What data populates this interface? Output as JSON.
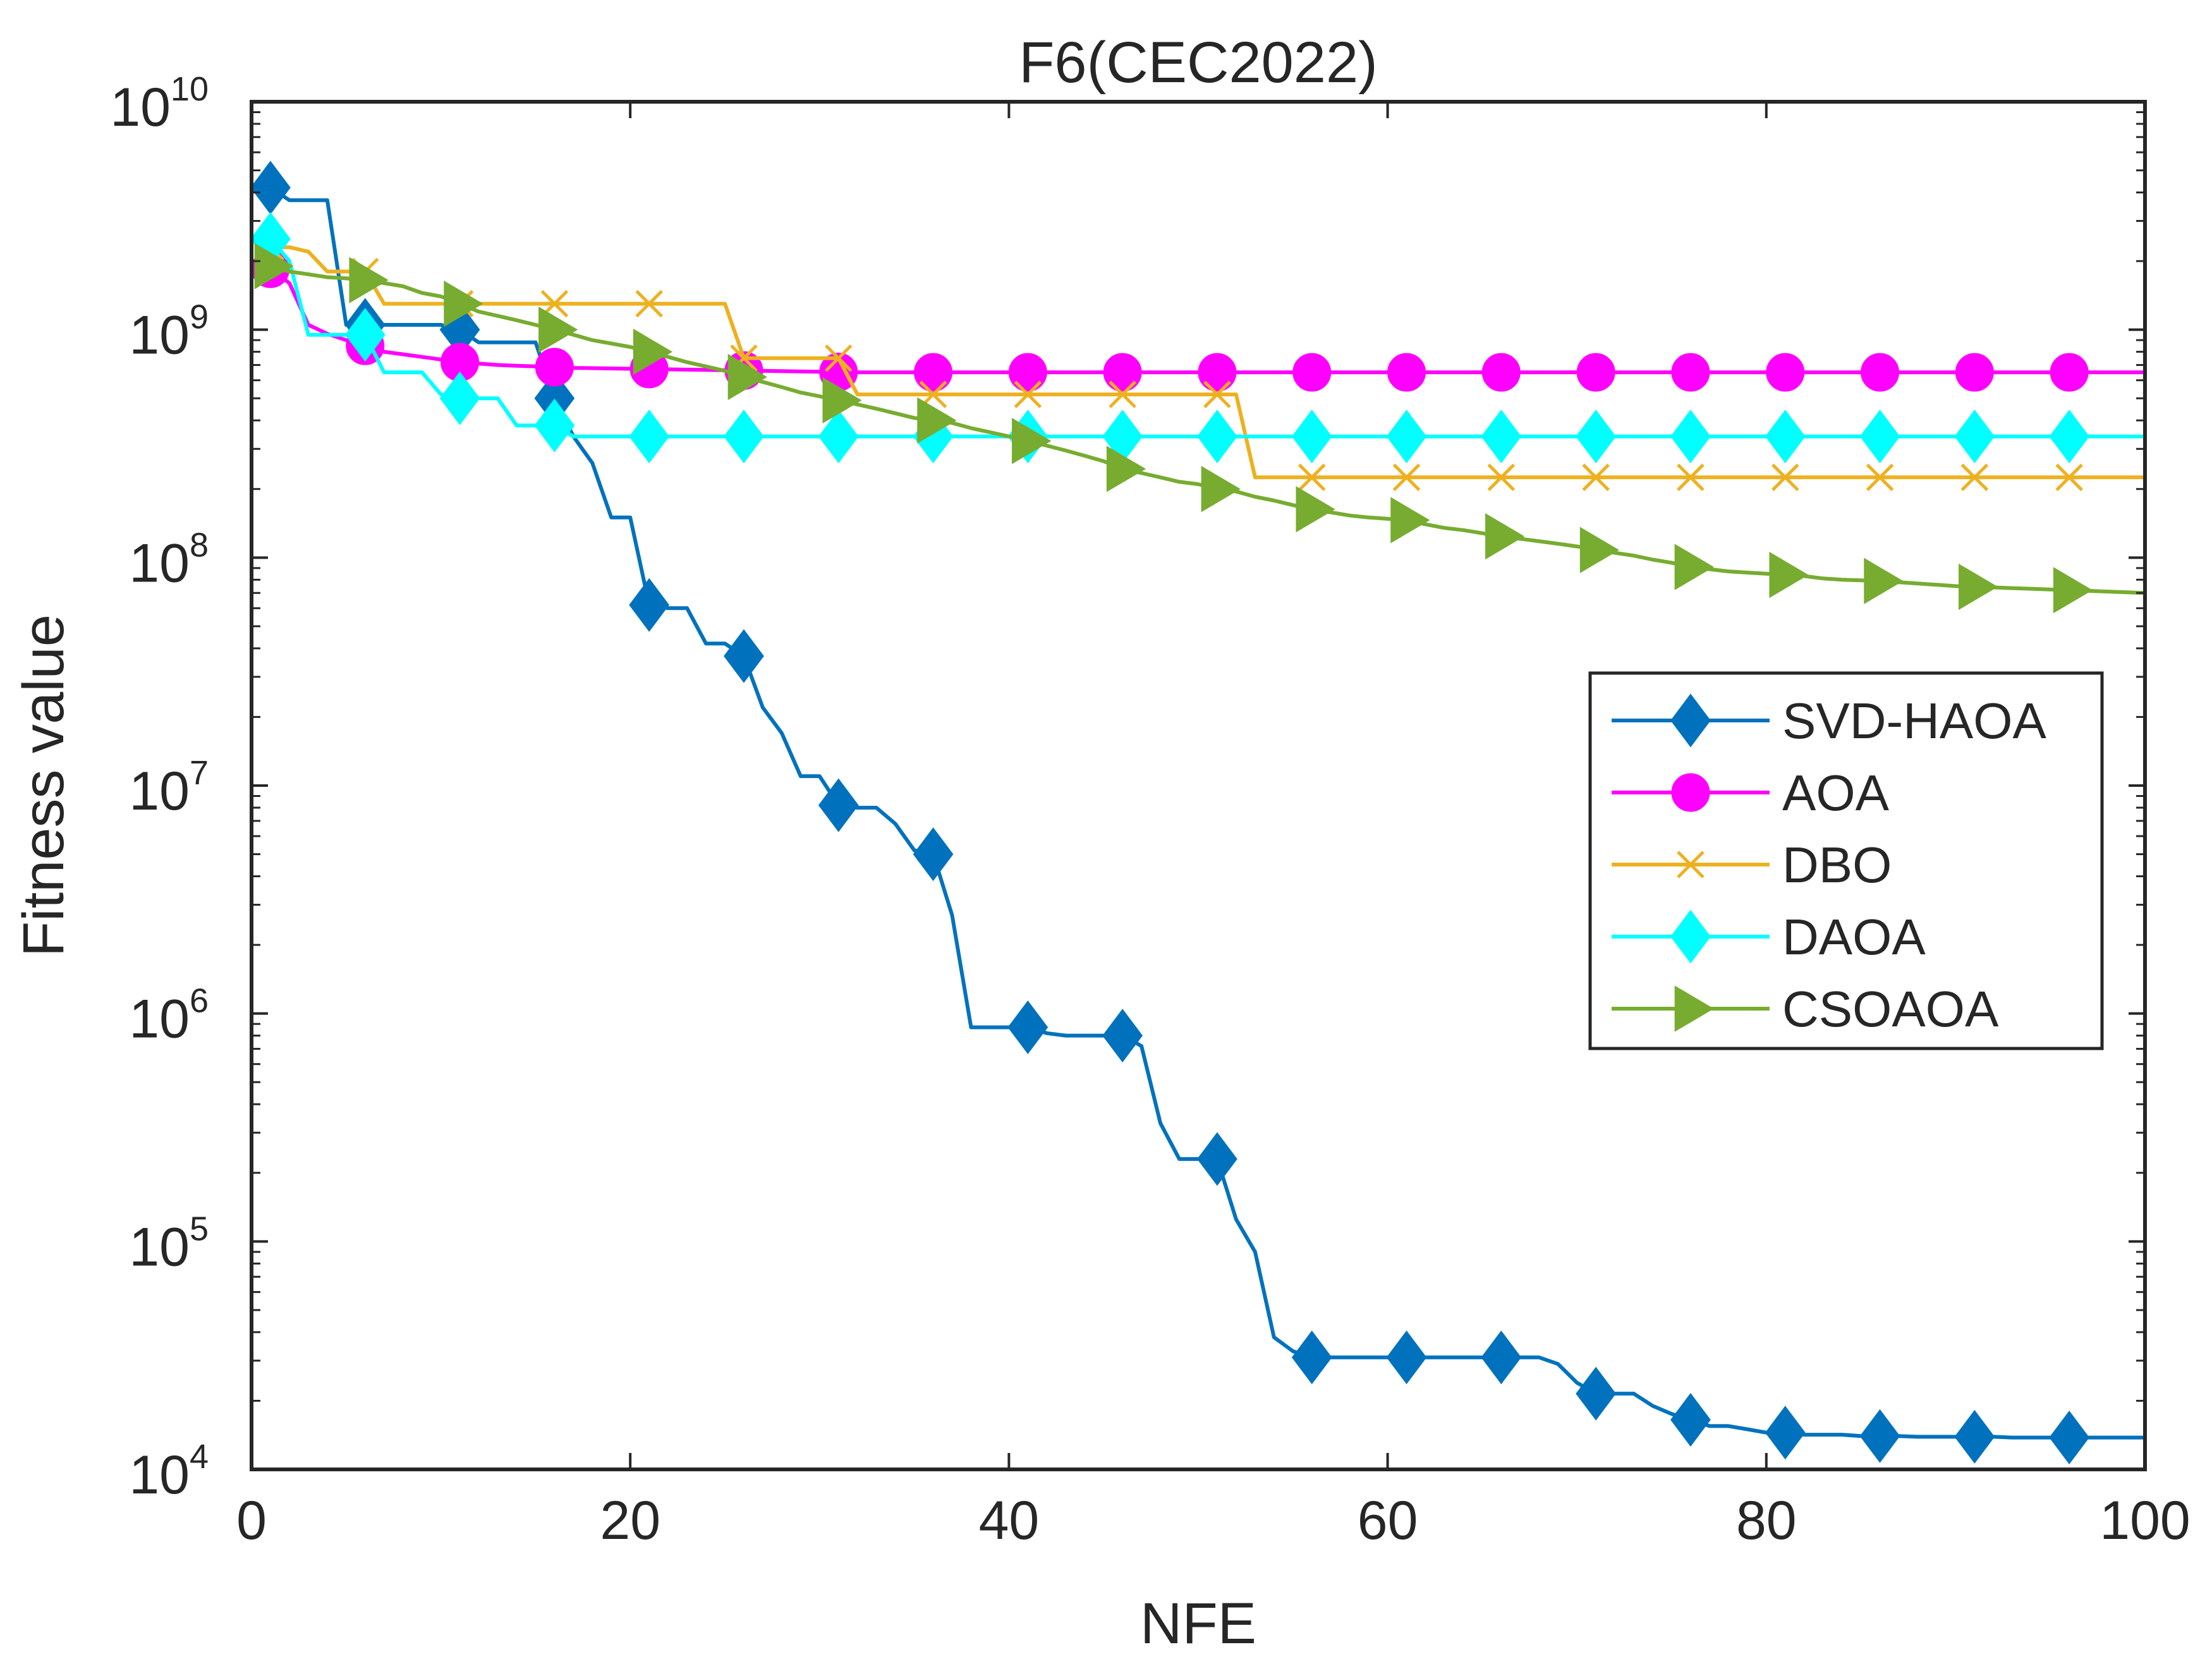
{
  "chart_data": {
    "type": "line",
    "title": "F6(CEC2022)",
    "xlabel": "NFE",
    "ylabel": "Fitness value",
    "xlim": [
      0,
      100
    ],
    "ylim": [
      10000,
      10000000000
    ],
    "yscale": "log",
    "x_ticks": [
      "0",
      "20",
      "40",
      "60",
      "80",
      "100"
    ],
    "y_ticks": [
      {
        "base": "10",
        "exp": "4"
      },
      {
        "base": "10",
        "exp": "5"
      },
      {
        "base": "10",
        "exp": "6"
      },
      {
        "base": "10",
        "exp": "7"
      },
      {
        "base": "10",
        "exp": "8"
      },
      {
        "base": "10",
        "exp": "9"
      },
      {
        "base": "10",
        "exp": "10"
      }
    ],
    "grid": false,
    "legend_position": "right",
    "series": [
      {
        "name": "SVD-HAOA",
        "color": "#0072BD",
        "marker": "diamond",
        "x": [
          1,
          2,
          3,
          4,
          5,
          6,
          7,
          8,
          9,
          10,
          11,
          12,
          13,
          14,
          15,
          16,
          17,
          18,
          19,
          20,
          21,
          22,
          23,
          24,
          25,
          26,
          27,
          28,
          29,
          30,
          31,
          32,
          33,
          34,
          35,
          36,
          37,
          38,
          39,
          40,
          41,
          42,
          43,
          44,
          45,
          46,
          47,
          48,
          49,
          50,
          51,
          52,
          53,
          54,
          55,
          56,
          57,
          58,
          59,
          60,
          61,
          62,
          63,
          64,
          65,
          66,
          67,
          68,
          69,
          70,
          71,
          72,
          73,
          74,
          75,
          76,
          77,
          78,
          79,
          80,
          81,
          82,
          83,
          84,
          85,
          86,
          87,
          88,
          89,
          90,
          91,
          92,
          93,
          94,
          95,
          96,
          97,
          98,
          99,
          100
        ],
        "values": [
          4200000000,
          3700000000,
          3700000000,
          3700000000,
          1050000000,
          1050000000,
          1050000000,
          1050000000,
          1050000000,
          1050000000,
          1000000000,
          880000000,
          880000000,
          880000000,
          880000000,
          500000000,
          340000000,
          260000000,
          150000000,
          150000000,
          62000000,
          60000000,
          60000000,
          42000000,
          42000000,
          37000000,
          22000000,
          17000000,
          11000000,
          11000000,
          8200000,
          8000000,
          8000000,
          6800000,
          5200000,
          5000000,
          2700000,
          870000,
          870000,
          870000,
          870000,
          820000,
          800000,
          800000,
          800000,
          800000,
          720000,
          330000,
          230000,
          230000,
          230000,
          125000,
          90000,
          38000,
          33000,
          31000,
          31000,
          31000,
          31000,
          31000,
          31000,
          31000,
          31000,
          31000,
          31000,
          31000,
          31000,
          31000,
          29000,
          24000,
          21500,
          21500,
          21500,
          19000,
          17500,
          16500,
          15500,
          15500,
          15000,
          14500,
          14500,
          14200,
          14200,
          14200,
          14000,
          14000,
          14000,
          13900,
          13900,
          13900,
          13900,
          13900,
          13800,
          13800,
          13800,
          13800,
          13800,
          13800,
          13800,
          13800
        ]
      },
      {
        "name": "AOA",
        "color": "#FF00FF",
        "marker": "circle",
        "x": [
          1,
          2,
          3,
          4,
          5,
          6,
          7,
          8,
          9,
          10,
          11,
          12,
          13,
          14,
          15,
          16,
          17,
          18,
          19,
          20,
          21,
          22,
          23,
          24,
          25,
          26,
          27,
          28,
          29,
          30,
          31,
          32,
          33,
          34,
          35,
          36,
          37,
          38,
          39,
          40,
          41,
          42,
          43,
          44,
          45,
          46,
          47,
          48,
          49,
          50,
          51,
          52,
          53,
          54,
          55,
          56,
          57,
          58,
          59,
          60,
          61,
          62,
          63,
          64,
          65,
          66,
          67,
          68,
          69,
          70,
          71,
          72,
          73,
          74,
          75,
          76,
          77,
          78,
          79,
          80,
          81,
          82,
          83,
          84,
          85,
          86,
          87,
          88,
          89,
          90,
          91,
          92,
          93,
          94,
          95,
          96,
          97,
          98,
          99,
          100
        ],
        "values": [
          1850000000,
          1600000000,
          1050000000,
          960000000,
          900000000,
          850000000,
          800000000,
          780000000,
          760000000,
          740000000,
          720000000,
          710000000,
          700000000,
          695000000,
          690000000,
          685000000,
          680000000,
          678000000,
          676000000,
          674000000,
          672000000,
          670000000,
          668000000,
          666000000,
          664000000,
          662000000,
          660000000,
          658000000,
          656000000,
          654000000,
          652000000,
          650000000,
          650000000,
          650000000,
          650000000,
          650000000,
          650000000,
          650000000,
          650000000,
          650000000,
          650000000,
          650000000,
          650000000,
          650000000,
          650000000,
          650000000,
          650000000,
          650000000,
          650000000,
          650000000,
          650000000,
          650000000,
          650000000,
          650000000,
          650000000,
          650000000,
          650000000,
          650000000,
          650000000,
          650000000,
          650000000,
          650000000,
          650000000,
          650000000,
          650000000,
          650000000,
          650000000,
          650000000,
          650000000,
          650000000,
          650000000,
          650000000,
          650000000,
          650000000,
          650000000,
          650000000,
          650000000,
          650000000,
          650000000,
          650000000,
          650000000,
          650000000,
          650000000,
          650000000,
          650000000,
          650000000,
          650000000,
          650000000,
          650000000,
          650000000,
          650000000,
          650000000,
          650000000,
          650000000,
          650000000,
          650000000,
          650000000,
          650000000,
          650000000,
          650000000
        ]
      },
      {
        "name": "DBO",
        "color": "#EDB120",
        "marker": "x",
        "x": [
          1,
          2,
          3,
          4,
          5,
          6,
          7,
          8,
          9,
          10,
          11,
          12,
          13,
          14,
          15,
          16,
          17,
          18,
          19,
          20,
          21,
          22,
          23,
          24,
          25,
          26,
          27,
          28,
          29,
          30,
          31,
          32,
          33,
          34,
          35,
          36,
          37,
          38,
          39,
          40,
          41,
          42,
          43,
          44,
          45,
          46,
          47,
          48,
          49,
          50,
          51,
          52,
          53,
          54,
          55,
          56,
          57,
          58,
          59,
          60,
          61,
          62,
          63,
          64,
          65,
          66,
          67,
          68,
          69,
          70,
          71,
          72,
          73,
          74,
          75,
          76,
          77,
          78,
          79,
          80,
          81,
          82,
          83,
          84,
          85,
          86,
          87,
          88,
          89,
          90,
          91,
          92,
          93,
          94,
          95,
          96,
          97,
          98,
          99,
          100
        ],
        "values": [
          2300000000,
          2300000000,
          2200000000,
          1800000000,
          1800000000,
          1800000000,
          1300000000,
          1300000000,
          1300000000,
          1300000000,
          1300000000,
          1300000000,
          1300000000,
          1300000000,
          1300000000,
          1300000000,
          1300000000,
          1300000000,
          1300000000,
          1300000000,
          1300000000,
          1300000000,
          1300000000,
          1300000000,
          1300000000,
          750000000,
          750000000,
          750000000,
          750000000,
          750000000,
          750000000,
          520000000,
          520000000,
          520000000,
          520000000,
          520000000,
          520000000,
          520000000,
          520000000,
          520000000,
          520000000,
          520000000,
          520000000,
          520000000,
          520000000,
          520000000,
          520000000,
          520000000,
          520000000,
          520000000,
          520000000,
          520000000,
          225000000,
          225000000,
          225000000,
          225000000,
          225000000,
          225000000,
          225000000,
          225000000,
          225000000,
          225000000,
          225000000,
          225000000,
          225000000,
          225000000,
          225000000,
          225000000,
          225000000,
          225000000,
          225000000,
          225000000,
          225000000,
          225000000,
          225000000,
          225000000,
          225000000,
          225000000,
          225000000,
          225000000,
          225000000,
          225000000,
          225000000,
          225000000,
          225000000,
          225000000,
          225000000,
          225000000,
          225000000,
          225000000,
          225000000,
          225000000,
          225000000,
          225000000,
          225000000,
          225000000,
          225000000,
          225000000,
          225000000,
          225000000
        ]
      },
      {
        "name": "DAOA",
        "color": "#00FFFF",
        "marker": "diamond",
        "x": [
          1,
          2,
          3,
          4,
          5,
          6,
          7,
          8,
          9,
          10,
          11,
          12,
          13,
          14,
          15,
          16,
          17,
          18,
          19,
          20,
          21,
          22,
          23,
          24,
          25,
          26,
          27,
          28,
          29,
          30,
          31,
          32,
          33,
          34,
          35,
          36,
          37,
          38,
          39,
          40,
          41,
          42,
          43,
          44,
          45,
          46,
          47,
          48,
          49,
          50,
          51,
          52,
          53,
          54,
          55,
          56,
          57,
          58,
          59,
          60,
          61,
          62,
          63,
          64,
          65,
          66,
          67,
          68,
          69,
          70,
          71,
          72,
          73,
          74,
          75,
          76,
          77,
          78,
          79,
          80,
          81,
          82,
          83,
          84,
          85,
          86,
          87,
          88,
          89,
          90,
          91,
          92,
          93,
          94,
          95,
          96,
          97,
          98,
          99,
          100
        ],
        "values": [
          2500000000,
          2000000000,
          950000000,
          950000000,
          950000000,
          950000000,
          650000000,
          650000000,
          650000000,
          520000000,
          500000000,
          500000000,
          500000000,
          380000000,
          380000000,
          380000000,
          340000000,
          340000000,
          340000000,
          340000000,
          340000000,
          340000000,
          340000000,
          340000000,
          340000000,
          340000000,
          340000000,
          340000000,
          340000000,
          340000000,
          340000000,
          340000000,
          340000000,
          340000000,
          340000000,
          340000000,
          340000000,
          340000000,
          340000000,
          340000000,
          340000000,
          340000000,
          340000000,
          340000000,
          340000000,
          340000000,
          340000000,
          340000000,
          340000000,
          340000000,
          340000000,
          340000000,
          340000000,
          340000000,
          340000000,
          340000000,
          340000000,
          340000000,
          340000000,
          340000000,
          340000000,
          340000000,
          340000000,
          340000000,
          340000000,
          340000000,
          340000000,
          340000000,
          340000000,
          340000000,
          340000000,
          340000000,
          340000000,
          340000000,
          340000000,
          340000000,
          340000000,
          340000000,
          340000000,
          340000000,
          340000000,
          340000000,
          340000000,
          340000000,
          340000000,
          340000000,
          340000000,
          340000000,
          340000000,
          340000000,
          340000000,
          340000000,
          340000000,
          340000000,
          340000000,
          340000000,
          340000000,
          340000000,
          340000000,
          340000000
        ]
      },
      {
        "name": "CSOAOA",
        "color": "#77AC30",
        "marker": "triangle-right",
        "x": [
          1,
          2,
          3,
          4,
          5,
          6,
          7,
          8,
          9,
          10,
          11,
          12,
          13,
          14,
          15,
          16,
          17,
          18,
          19,
          20,
          21,
          22,
          23,
          24,
          25,
          26,
          27,
          28,
          29,
          30,
          31,
          32,
          33,
          34,
          35,
          36,
          37,
          38,
          39,
          40,
          41,
          42,
          43,
          44,
          45,
          46,
          47,
          48,
          49,
          50,
          51,
          52,
          53,
          54,
          55,
          56,
          57,
          58,
          59,
          60,
          61,
          62,
          63,
          64,
          65,
          66,
          67,
          68,
          69,
          70,
          71,
          72,
          73,
          74,
          75,
          76,
          77,
          78,
          79,
          80,
          81,
          82,
          83,
          84,
          85,
          86,
          87,
          88,
          89,
          90,
          91,
          92,
          93,
          94,
          95,
          96,
          97,
          98,
          99,
          100
        ],
        "values": [
          1900000000,
          1800000000,
          1750000000,
          1700000000,
          1680000000,
          1650000000,
          1600000000,
          1550000000,
          1450000000,
          1400000000,
          1300000000,
          1200000000,
          1150000000,
          1100000000,
          1050000000,
          1000000000,
          950000000,
          900000000,
          870000000,
          840000000,
          800000000,
          760000000,
          720000000,
          690000000,
          660000000,
          620000000,
          590000000,
          560000000,
          530000000,
          510000000,
          490000000,
          470000000,
          450000000,
          430000000,
          410000000,
          400000000,
          390000000,
          370000000,
          355000000,
          340000000,
          325000000,
          310000000,
          295000000,
          280000000,
          265000000,
          245000000,
          235000000,
          225000000,
          215000000,
          210000000,
          200000000,
          195000000,
          185000000,
          178000000,
          170000000,
          163000000,
          158000000,
          153000000,
          150000000,
          148000000,
          146000000,
          140000000,
          135000000,
          132000000,
          128000000,
          124000000,
          121000000,
          118000000,
          115000000,
          112000000,
          108000000,
          105000000,
          102000000,
          98000000,
          95000000,
          91000000,
          89000000,
          87000000,
          86000000,
          85000000,
          84000000,
          83000000,
          81000000,
          80000000,
          79500000,
          79000000,
          78000000,
          77000000,
          76000000,
          75000000,
          74500000,
          74000000,
          73500000,
          73000000,
          72500000,
          72000000,
          71500000,
          71000000,
          70500000,
          70000000
        ]
      }
    ]
  }
}
